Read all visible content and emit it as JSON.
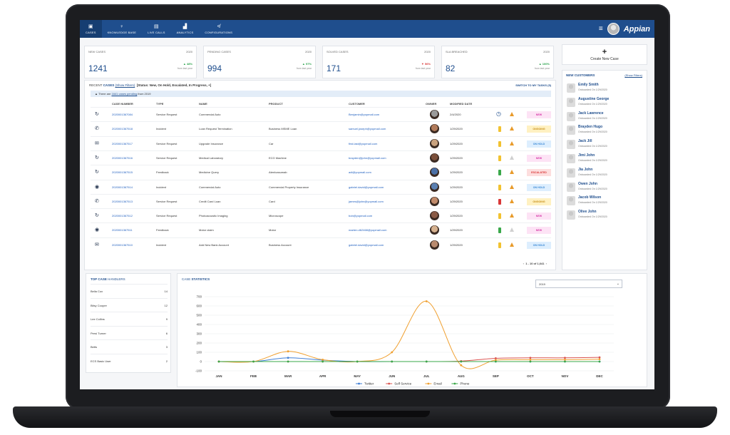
{
  "nav": {
    "items": [
      {
        "label": "CASES",
        "sub": "",
        "icon": "folder-icon"
      },
      {
        "label": "KNOWLEDGE BASE",
        "icon": "bulb-icon"
      },
      {
        "label": "LIVE CALLS",
        "icon": "doc-icon"
      },
      {
        "label": "ANALYTICS",
        "icon": "bars-icon"
      },
      {
        "label": "CONFIGURATIONS",
        "icon": "sliders-icon"
      }
    ],
    "brand": "Appian"
  },
  "stats": [
    {
      "title": "NEW CASES",
      "year": "2020",
      "value": "1241",
      "change": "▲ 48%",
      "dir": "up",
      "note": "from last year"
    },
    {
      "title": "PENDING CASES",
      "year": "2020",
      "value": "994",
      "change": "▲ 97%",
      "dir": "up",
      "note": "from last year"
    },
    {
      "title": "SOLVED CASES",
      "year": "2020",
      "value": "171",
      "change": "▼ 56%",
      "dir": "down",
      "note": "from last year"
    },
    {
      "title": "SLA BREACHED",
      "year": "2020",
      "value": "82",
      "change": "▲ 100%",
      "dir": "up",
      "note": "from last year"
    }
  ],
  "create_case": {
    "label": "Create New Case"
  },
  "cases": {
    "title_prefix": "RECENT",
    "title_bold": "CASES",
    "show_filters": "(Show Filters)",
    "status_filter": "[Status: New, On Hold, Escalated, In Progress, +]",
    "switch": "SWITCH TO MY TASKS (5)",
    "banner_pre": "There are",
    "banner_link": "1641 cases pending",
    "banner_post": "from 2019",
    "headers": {
      "num": "CASE NUMBER",
      "type": "TYPE",
      "name": "NAME",
      "product": "PRODUCT",
      "customer": "CUSTOMER",
      "owner": "OWNER",
      "modified": "MODIFIED DATE"
    },
    "rows": [
      {
        "num": "2020001367084",
        "type": "Service Request",
        "name": "Commercial Auto",
        "product": "",
        "customer": "Benjamin@yopmail.com",
        "date": "2/4/2020",
        "status": "NEW"
      },
      {
        "num": "2020001367518",
        "type": "Incident",
        "name": "Loan Request Termination",
        "product": "Business MSME Loan",
        "customer": "samuel.joseph@yopmail.com",
        "date": "1/29/2020",
        "status": "ONGOING"
      },
      {
        "num": "2020001367517",
        "type": "Service Request",
        "name": "Upgrade Insurance",
        "product": "Car",
        "customer": "first.last@yopmail.com",
        "date": "1/29/2020",
        "status": "ON HOLD"
      },
      {
        "num": "2020001367516",
        "type": "Service Request",
        "name": "Medical Laboratory",
        "product": "ECG Machine",
        "customer": "brayden@john@yopmail.com",
        "date": "1/29/2020",
        "status": "NEW"
      },
      {
        "num": "2020001367515",
        "type": "Feedback",
        "name": "Medicine Query",
        "product": "Atenloasumab",
        "customer": "adi@yopmail.com",
        "date": "1/29/2020",
        "status": "ESCALATED"
      },
      {
        "num": "2020001367514",
        "type": "Incident",
        "name": "Commercial Auto",
        "product": "Commercial Property Insurance",
        "customer": "gabriel.david@yopmail.com",
        "date": "1/29/2020",
        "status": "ON HOLD"
      },
      {
        "num": "2020001367513",
        "type": "Service Request",
        "name": "Credit Card Loan",
        "product": "Card",
        "customer": "james@john@yopmail.com",
        "date": "1/29/2020",
        "status": "ONGOING"
      },
      {
        "num": "2020001367512",
        "type": "Service Request",
        "name": "Photoacoustic Imaging",
        "product": "Microscope",
        "customer": "bob@yopmail.com",
        "date": "1/29/2020",
        "status": "NEW"
      },
      {
        "num": "2020001367511",
        "type": "Feedback",
        "name": "Motor claim",
        "product": "Motor",
        "customer": "marten.d62468@yopmail.com",
        "date": "1/29/2020",
        "status": "NEW"
      },
      {
        "num": "2020001367510",
        "type": "Incident",
        "name": "Add New Bank Account",
        "product": "Business Account",
        "customer": "gabriel.david@yopmail.com",
        "date": "1/29/2020",
        "status": "ON HOLD"
      }
    ],
    "pager": "1 - 10 of 1,641"
  },
  "new_customers": {
    "title": "NEW CUSTOMERS",
    "show_filters": "(Show Filters)",
    "items": [
      {
        "name": "Emily Smith",
        "onboard": "Onboarded On 1/29/2020"
      },
      {
        "name": "Augustine George",
        "onboard": "Onboarded On 1/29/2020"
      },
      {
        "name": "Jack Lawrence",
        "onboard": "Onboarded On 1/29/2020"
      },
      {
        "name": "Brayden Hugo",
        "onboard": "Onboarded On 1/29/2020"
      },
      {
        "name": "Jack Jill",
        "onboard": "Onboarded On 1/29/2020"
      },
      {
        "name": "Jimi John",
        "onboard": "Onboarded On 1/29/2020"
      },
      {
        "name": "Jia John",
        "onboard": "Onboarded On 1/29/2020"
      },
      {
        "name": "Owen John",
        "onboard": "Onboarded On 1/29/2020"
      },
      {
        "name": "Jacob Wilson",
        "onboard": "Onboarded On 1/29/2020"
      },
      {
        "name": "Olive John",
        "onboard": "Onboarded On 1/29/2020"
      }
    ]
  },
  "handlers": {
    "title_bold": "TOP CASE",
    "title_rest": "HANDLERS",
    "items": [
      {
        "name": "Bella Cox",
        "count": "14"
      },
      {
        "name": "Bitsy Cooper",
        "count": "12"
      },
      {
        "name": "Lee Collins",
        "count": "9"
      },
      {
        "name": "Persi Turner",
        "count": "6"
      },
      {
        "name": "Betts",
        "count": "3"
      },
      {
        "name": "ECS Basic User",
        "count": "2"
      }
    ]
  },
  "case_stats": {
    "title_pre": "CASE",
    "title_bold": "STATISTICS",
    "year": "2019"
  },
  "chart_data": {
    "type": "line",
    "categories": [
      "JAN",
      "FEB",
      "MAR",
      "APR",
      "MAY",
      "JUN",
      "JUL",
      "AUG",
      "SEP",
      "OCT",
      "NOV",
      "DEC"
    ],
    "ylim": [
      -100,
      700
    ],
    "yticks": [
      -100,
      0,
      100,
      200,
      300,
      400,
      500,
      600,
      700
    ],
    "legend_position": "bottom",
    "series": [
      {
        "name": "Twitter",
        "color": "#3f7fd6",
        "values": [
          0,
          0,
          40,
          15,
          0,
          0,
          0,
          0,
          0,
          0,
          0,
          0
        ]
      },
      {
        "name": "Self Service",
        "color": "#d9534f",
        "values": [
          0,
          0,
          0,
          0,
          0,
          0,
          0,
          5,
          35,
          40,
          40,
          45
        ]
      },
      {
        "name": "Email",
        "color": "#f0a030",
        "values": [
          0,
          0,
          110,
          20,
          0,
          100,
          650,
          -40,
          15,
          20,
          20,
          25
        ]
      },
      {
        "name": "Phone",
        "color": "#3aa84a",
        "values": [
          0,
          0,
          0,
          0,
          0,
          0,
          0,
          0,
          0,
          0,
          0,
          0
        ]
      }
    ]
  }
}
